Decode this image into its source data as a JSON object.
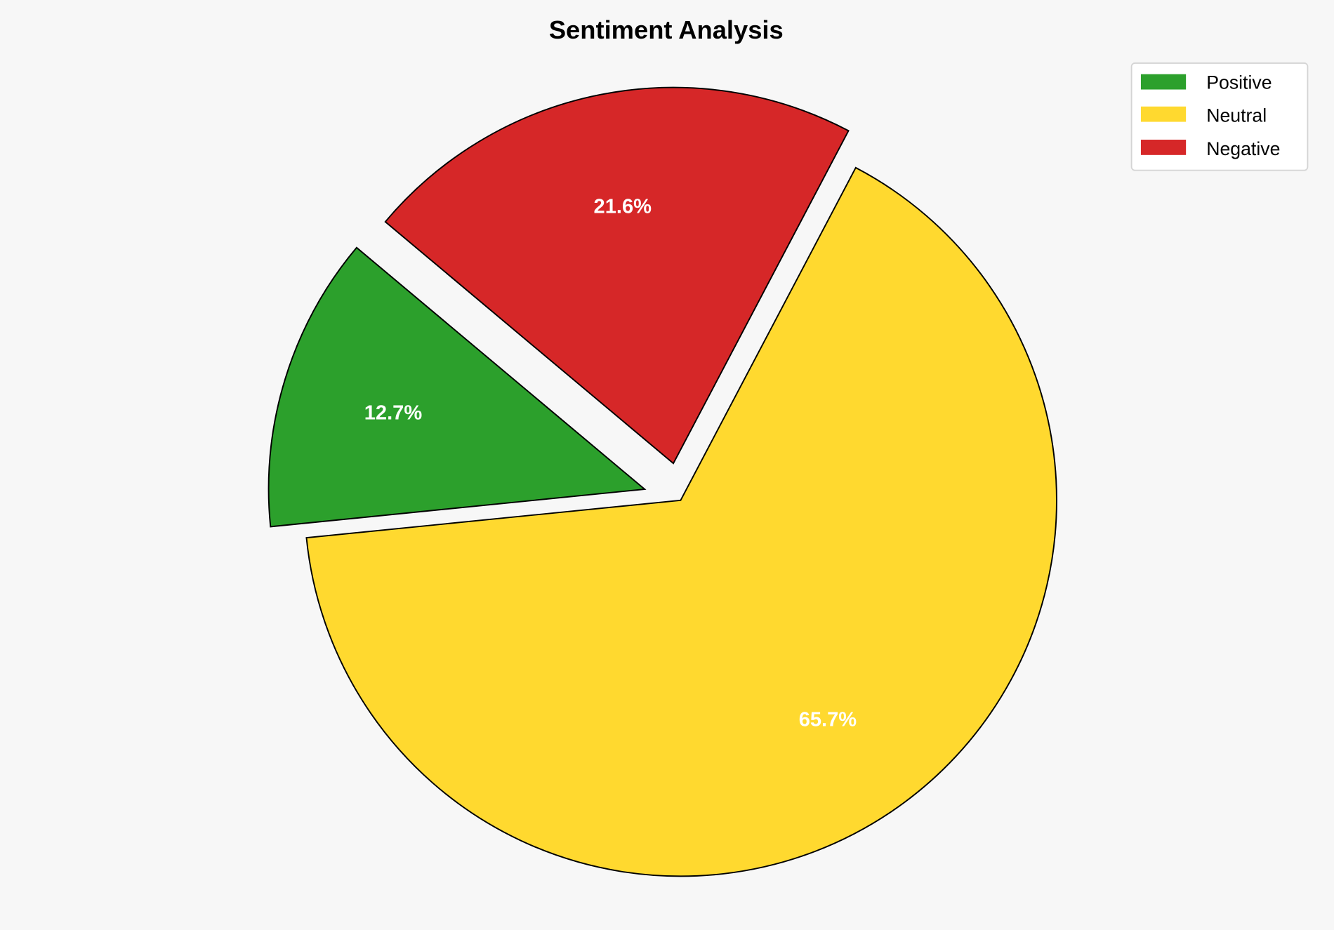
{
  "chart_data": {
    "type": "pie",
    "title": "Sentiment Analysis",
    "categories": [
      "Positive",
      "Neutral",
      "Negative"
    ],
    "values": [
      12.7,
      65.7,
      21.6
    ],
    "labels": [
      "12.7%",
      "65.7%",
      "21.6%"
    ],
    "colors": [
      "#2ca02c",
      "#ffd92f",
      "#d62728"
    ],
    "explode": [
      0.1,
      0,
      0.1
    ],
    "start_angle": 140,
    "direction": "counterclockwise",
    "legend_placement": "top-right",
    "background": "#f7f7f7"
  }
}
